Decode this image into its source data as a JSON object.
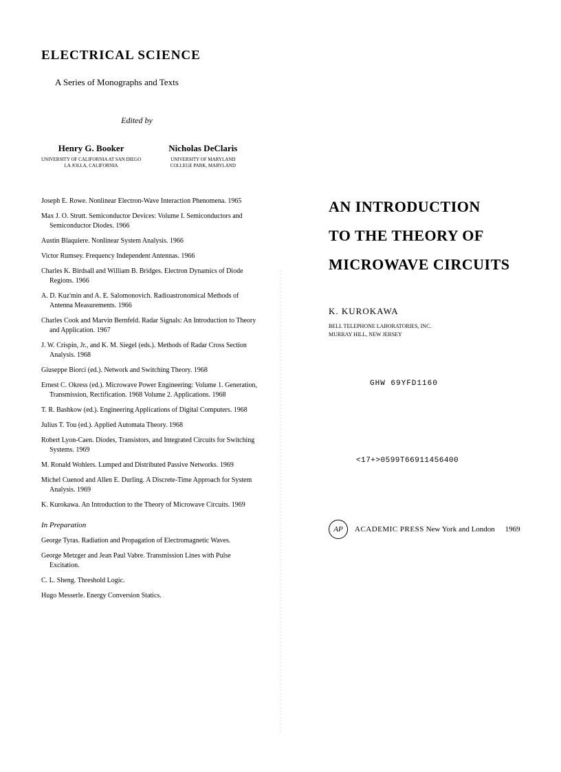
{
  "left": {
    "series_title": "ELECTRICAL SCIENCE",
    "series_subtitle": "A Series of Monographs and Texts",
    "edited_by": "Edited by",
    "editors": [
      {
        "name": "Henry G. Booker",
        "affil1": "UNIVERSITY OF CALIFORNIA AT SAN DIEGO",
        "affil2": "LA JOLLA, CALIFORNIA"
      },
      {
        "name": "Nicholas DeClaris",
        "affil1": "UNIVERSITY OF MARYLAND",
        "affil2": "COLLEGE PARK, MARYLAND"
      }
    ],
    "entries": [
      "Joseph E. Rowe. Nonlinear Electron-Wave Interaction Phenomena. 1965",
      "Max J. O. Strutt. Semiconductor Devices: Volume I. Semiconductors and Semiconductor Diodes. 1966",
      "Austin Blaquiere. Nonlinear System Analysis. 1966",
      "Victor Rumsey. Frequency Independent Antennas. 1966",
      "Charles K. Birdsall and William B. Bridges. Electron Dynamics of Diode Regions. 1966",
      "A. D. Kuz'min and A. E. Salomonovich. Radioastronomical Methods of Antenna Measurements. 1966",
      "Charles Cook and Marvin Bernfeld. Radar Signals: An Introduction to Theory and Application. 1967",
      "J. W. Crispin, Jr., and K. M. Siegel (eds.). Methods of Radar Cross Section Analysis. 1968",
      "Giuseppe Biorci (ed.). Network and Switching Theory. 1968",
      "Ernest C. Okress (ed.). Microwave Power Engineering: Volume 1. Generation, Transmission, Rectification. 1968 Volume 2. Applications. 1968",
      "T. R. Bashkow (ed.). Engineering Applications of Digital Computers. 1968",
      "Julius T. Tou (ed.). Applied Automata Theory. 1968",
      "Robert Lyon-Caen. Diodes, Transistors, and Integrated Circuits for Switching Systems. 1969",
      "M. Ronald Wohlers. Lumped and Distributed Passive Networks. 1969",
      "Michel Cuenod and Allen E. Durling. A Discrete-Time Approach for System Analysis. 1969",
      "K. Kurokawa. An Introduction to the Theory of Microwave Circuits. 1969"
    ],
    "prep_heading": "In Preparation",
    "prep_entries": [
      "George Tyras. Radiation and Propagation of Electromagnetic Waves.",
      "George Metzger and Jean Paul Vabre. Transmission Lines with Pulse Excitation.",
      "C. L. Sheng. Threshold Logic.",
      "Hugo Messerle. Energy Conversion Statics."
    ]
  },
  "right": {
    "title_line1": "AN INTRODUCTION",
    "title_line2": "TO THE THEORY OF",
    "title_line3": "MICROWAVE CIRCUITS",
    "author": "K. KUROKAWA",
    "affil1": "BELL TELEPHONE LABORATORIES, INC.",
    "affil2": "MURRAY HILL, NEW JERSEY",
    "code1": "GHW  69YFD1160",
    "code2": "<17+>0599T66911456400",
    "logo_text": "AP",
    "publisher_name": "ACADEMIC PRESS",
    "publisher_loc": "New York and London",
    "year": "1969"
  },
  "colors": {
    "text": "#000000",
    "background": "#ffffff"
  }
}
